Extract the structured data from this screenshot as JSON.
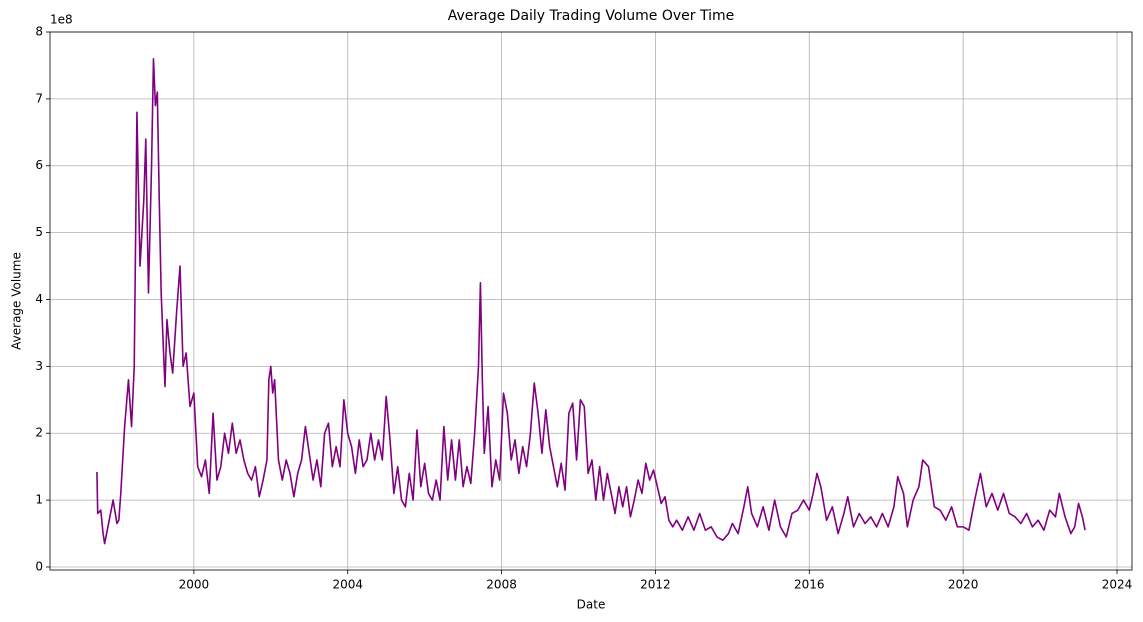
{
  "chart_data": {
    "type": "line",
    "title": "Average Daily Trading Volume Over Time",
    "x_label": "Date",
    "y_label": "Average Volume",
    "y_offset_label": "1e8",
    "xlim": [
      1996.26,
      2024.39
    ],
    "ylim": [
      -0.045,
      8
    ],
    "xticks": [
      2000,
      2004,
      2008,
      2012,
      2016,
      2020,
      2024
    ],
    "yticks": [
      0,
      1,
      2,
      3,
      4,
      5,
      6,
      7,
      8
    ],
    "grid": true,
    "x": [
      1997.48,
      1997.5,
      1997.58,
      1997.64,
      1997.68,
      1997.8,
      1997.9,
      1998.0,
      1998.05,
      1998.1,
      1998.2,
      1998.3,
      1998.38,
      1998.45,
      1998.52,
      1998.6,
      1998.7,
      1998.75,
      1998.82,
      1998.9,
      1998.95,
      1999.0,
      1999.05,
      1999.1,
      1999.15,
      1999.22,
      1999.25,
      1999.3,
      1999.38,
      1999.45,
      1999.55,
      1999.64,
      1999.72,
      1999.8,
      1999.9,
      2000.0,
      2000.1,
      2000.2,
      2000.3,
      2000.4,
      2000.5,
      2000.6,
      2000.7,
      2000.8,
      2000.9,
      2001.0,
      2001.1,
      2001.2,
      2001.3,
      2001.4,
      2001.5,
      2001.6,
      2001.7,
      2001.8,
      2001.9,
      2001.95,
      2002.0,
      2002.05,
      2002.1,
      2002.2,
      2002.3,
      2002.4,
      2002.5,
      2002.6,
      2002.7,
      2002.8,
      2002.9,
      2003.0,
      2003.1,
      2003.2,
      2003.3,
      2003.4,
      2003.5,
      2003.6,
      2003.7,
      2003.8,
      2003.9,
      2004.0,
      2004.1,
      2004.2,
      2004.3,
      2004.4,
      2004.5,
      2004.6,
      2004.7,
      2004.8,
      2004.9,
      2005.0,
      2005.1,
      2005.2,
      2005.3,
      2005.4,
      2005.5,
      2005.6,
      2005.7,
      2005.8,
      2005.9,
      2006.0,
      2006.1,
      2006.2,
      2006.3,
      2006.4,
      2006.5,
      2006.6,
      2006.7,
      2006.8,
      2006.9,
      2007.0,
      2007.1,
      2007.2,
      2007.3,
      2007.4,
      2007.45,
      2007.5,
      2007.55,
      2007.65,
      2007.75,
      2007.85,
      2007.95,
      2008.05,
      2008.15,
      2008.25,
      2008.35,
      2008.45,
      2008.55,
      2008.65,
      2008.75,
      2008.85,
      2008.95,
      2009.05,
      2009.15,
      2009.25,
      2009.35,
      2009.45,
      2009.55,
      2009.65,
      2009.75,
      2009.85,
      2009.95,
      2010.05,
      2010.15,
      2010.25,
      2010.35,
      2010.45,
      2010.55,
      2010.65,
      2010.75,
      2010.85,
      2010.95,
      2011.05,
      2011.15,
      2011.25,
      2011.35,
      2011.45,
      2011.55,
      2011.65,
      2011.75,
      2011.85,
      2011.95,
      2012.05,
      2012.15,
      2012.25,
      2012.35,
      2012.45,
      2012.55,
      2012.7,
      2012.85,
      2013.0,
      2013.15,
      2013.3,
      2013.45,
      2013.6,
      2013.75,
      2013.9,
      2014.0,
      2014.15,
      2014.3,
      2014.4,
      2014.5,
      2014.65,
      2014.8,
      2014.95,
      2015.1,
      2015.25,
      2015.4,
      2015.55,
      2015.7,
      2015.85,
      2016.0,
      2016.1,
      2016.2,
      2016.3,
      2016.45,
      2016.6,
      2016.75,
      2016.9,
      2017.0,
      2017.15,
      2017.3,
      2017.45,
      2017.6,
      2017.75,
      2017.9,
      2018.05,
      2018.2,
      2018.3,
      2018.45,
      2018.55,
      2018.7,
      2018.85,
      2018.95,
      2019.1,
      2019.25,
      2019.4,
      2019.55,
      2019.7,
      2019.85,
      2020.0,
      2020.15,
      2020.3,
      2020.45,
      2020.6,
      2020.75,
      2020.9,
      2021.05,
      2021.2,
      2021.35,
      2021.5,
      2021.65,
      2021.8,
      2021.95,
      2022.1,
      2022.25,
      2022.4,
      2022.5,
      2022.65,
      2022.8,
      2022.9,
      2023.0,
      2023.1,
      2023.17
    ],
    "series": [
      {
        "name": "Average Volume",
        "color": "#800080",
        "values": [
          1.42,
          0.8,
          0.85,
          0.5,
          0.35,
          0.7,
          1.0,
          0.65,
          0.7,
          1.1,
          2.1,
          2.8,
          2.1,
          3.0,
          6.8,
          4.5,
          5.5,
          6.4,
          4.1,
          6.0,
          7.6,
          6.9,
          7.1,
          5.5,
          4.1,
          3.1,
          2.7,
          3.7,
          3.2,
          2.9,
          3.8,
          4.5,
          3.0,
          3.2,
          2.4,
          2.6,
          1.5,
          1.35,
          1.6,
          1.1,
          2.3,
          1.3,
          1.5,
          2.0,
          1.7,
          2.15,
          1.7,
          1.9,
          1.6,
          1.4,
          1.3,
          1.5,
          1.05,
          1.3,
          1.6,
          2.8,
          3.0,
          2.6,
          2.8,
          1.6,
          1.3,
          1.6,
          1.4,
          1.05,
          1.4,
          1.6,
          2.1,
          1.7,
          1.3,
          1.6,
          1.2,
          2.0,
          2.15,
          1.5,
          1.8,
          1.5,
          2.5,
          2.0,
          1.8,
          1.4,
          1.9,
          1.5,
          1.6,
          2.0,
          1.6,
          1.9,
          1.6,
          2.55,
          1.9,
          1.1,
          1.5,
          1.0,
          0.9,
          1.4,
          1.0,
          2.05,
          1.2,
          1.55,
          1.1,
          1.0,
          1.3,
          1.0,
          2.1,
          1.3,
          1.9,
          1.3,
          1.9,
          1.2,
          1.5,
          1.25,
          2.0,
          3.0,
          4.25,
          2.8,
          1.7,
          2.4,
          1.2,
          1.6,
          1.3,
          2.6,
          2.3,
          1.6,
          1.9,
          1.4,
          1.8,
          1.5,
          2.0,
          2.75,
          2.3,
          1.7,
          2.35,
          1.8,
          1.5,
          1.2,
          1.55,
          1.15,
          2.3,
          2.45,
          1.6,
          2.5,
          2.4,
          1.4,
          1.6,
          1.0,
          1.5,
          1.0,
          1.4,
          1.1,
          0.8,
          1.2,
          0.9,
          1.2,
          0.75,
          1.0,
          1.3,
          1.1,
          1.55,
          1.3,
          1.45,
          1.2,
          0.95,
          1.05,
          0.7,
          0.6,
          0.7,
          0.55,
          0.75,
          0.55,
          0.8,
          0.55,
          0.6,
          0.45,
          0.4,
          0.5,
          0.65,
          0.5,
          0.9,
          1.2,
          0.8,
          0.6,
          0.9,
          0.55,
          1.0,
          0.6,
          0.45,
          0.8,
          0.85,
          1.0,
          0.85,
          1.1,
          1.4,
          1.2,
          0.7,
          0.9,
          0.5,
          0.8,
          1.05,
          0.6,
          0.8,
          0.65,
          0.75,
          0.6,
          0.8,
          0.6,
          0.9,
          1.35,
          1.1,
          0.6,
          1.0,
          1.2,
          1.6,
          1.5,
          0.9,
          0.85,
          0.7,
          0.9,
          0.6,
          0.6,
          0.55,
          1.0,
          1.4,
          0.9,
          1.1,
          0.85,
          1.1,
          0.8,
          0.75,
          0.65,
          0.8,
          0.6,
          0.7,
          0.55,
          0.85,
          0.75,
          1.1,
          0.75,
          0.5,
          0.6,
          0.95,
          0.75,
          0.55
        ]
      }
    ]
  }
}
